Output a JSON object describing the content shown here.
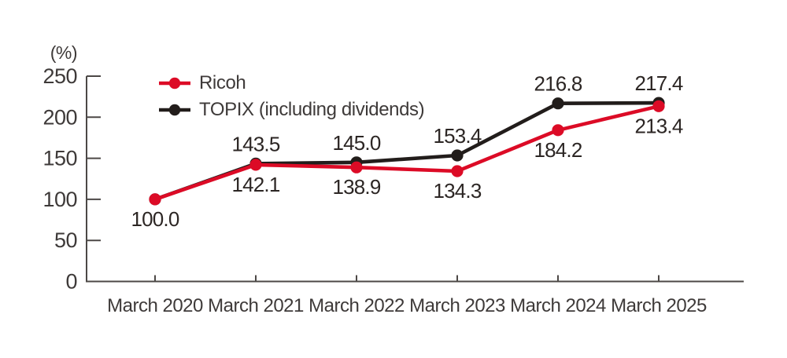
{
  "chart_data": {
    "type": "line",
    "title": "",
    "unit_label": "(%)",
    "categories": [
      "March 2020",
      "March 2021",
      "March 2022",
      "March 2023",
      "March 2024",
      "March 2025"
    ],
    "series": [
      {
        "name": "TOPIX (including dividends)",
        "slug": "topix",
        "color": "#221d1b",
        "values": [
          100.0,
          143.5,
          145.0,
          153.4,
          216.8,
          217.4
        ],
        "point_labels": [
          "",
          "143.5",
          "145.0",
          "153.4",
          "216.8",
          "217.4"
        ],
        "label_position": "above"
      },
      {
        "name": "Ricoh",
        "slug": "ricoh",
        "color": "#dc0b26",
        "values": [
          100.0,
          142.1,
          138.9,
          134.3,
          184.2,
          213.4
        ],
        "point_labels": [
          "100.0",
          "142.1",
          "138.9",
          "134.3",
          "184.2",
          "213.4"
        ],
        "label_position": "below"
      }
    ],
    "y_ticks": [
      250,
      200,
      150,
      100,
      50,
      0
    ],
    "ylim": [
      0,
      250
    ],
    "grid": false,
    "legend_position": "top-left-inside",
    "legend_order": [
      "Ricoh",
      "TOPIX (including dividends)"
    ],
    "axis_color": "#4c4846"
  }
}
